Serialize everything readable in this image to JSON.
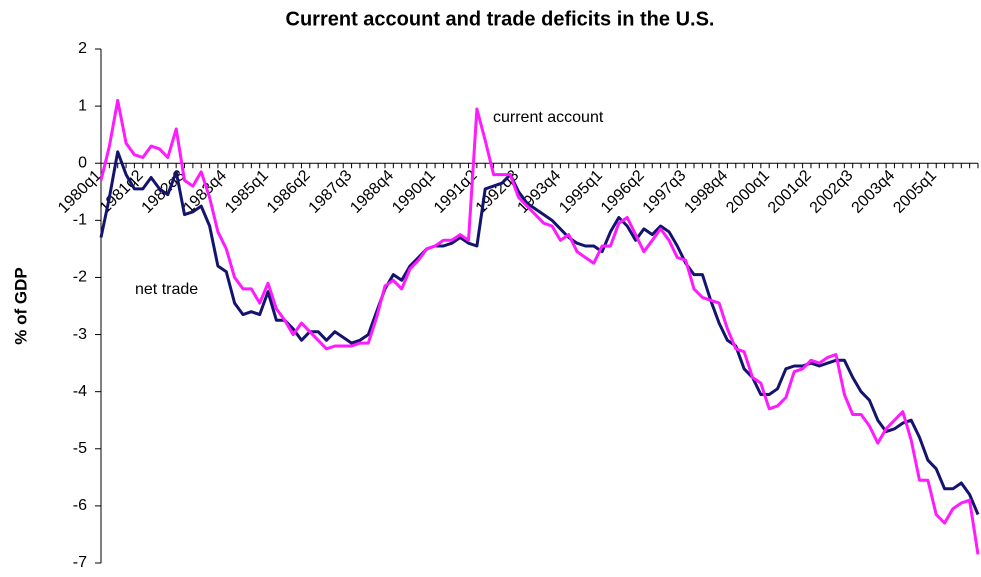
{
  "chart_data": {
    "type": "line",
    "title": "Current account and trade deficits in the U.S.",
    "y_label": "% of GDP",
    "categories": [
      "1980q1",
      null,
      null,
      null,
      null,
      "1981q2",
      null,
      null,
      null,
      null,
      "1982q3",
      null,
      null,
      null,
      null,
      "1983q4",
      null,
      null,
      null,
      null,
      "1985q1",
      null,
      null,
      null,
      null,
      "1986q2",
      null,
      null,
      null,
      null,
      "1987q3",
      null,
      null,
      null,
      null,
      "1988q4",
      null,
      null,
      null,
      null,
      "1990q1",
      null,
      null,
      null,
      null,
      "1991q2",
      null,
      null,
      null,
      null,
      "1992q3",
      null,
      null,
      null,
      null,
      "1993q4",
      null,
      null,
      null,
      null,
      "1995q1",
      null,
      null,
      null,
      null,
      "1996q2",
      null,
      null,
      null,
      null,
      "1997q3",
      null,
      null,
      null,
      null,
      "1998q4",
      null,
      null,
      null,
      null,
      "2000q1",
      null,
      null,
      null,
      null,
      "2001q2",
      null,
      null,
      null,
      null,
      "2002q3",
      null,
      null,
      null,
      null,
      "2003q4",
      null,
      null,
      null,
      null,
      "2005q1",
      null,
      null,
      null,
      null,
      null
    ],
    "series": [
      {
        "name": "net trade",
        "color": "#14146e",
        "values": [
          -1.3,
          -0.6,
          0.2,
          -0.2,
          -0.45,
          -0.45,
          -0.25,
          -0.45,
          -0.55,
          -0.15,
          -0.9,
          -0.85,
          -0.75,
          -1.1,
          -1.8,
          -1.9,
          -2.45,
          -2.65,
          -2.6,
          -2.65,
          -2.25,
          -2.75,
          -2.75,
          -2.9,
          -3.1,
          -2.95,
          -2.95,
          -3.1,
          -2.95,
          -3.05,
          -3.15,
          -3.1,
          -3.0,
          -2.6,
          -2.2,
          -1.95,
          -2.05,
          -1.8,
          -1.65,
          -1.5,
          -1.45,
          -1.45,
          -1.4,
          -1.3,
          -1.4,
          -1.45,
          -0.45,
          -0.4,
          -0.35,
          -0.2,
          -0.5,
          -0.7,
          -0.8,
          -0.9,
          -1.0,
          -1.15,
          -1.3,
          -1.4,
          -1.45,
          -1.45,
          -1.55,
          -1.2,
          -0.95,
          -1.1,
          -1.35,
          -1.15,
          -1.25,
          -1.1,
          -1.2,
          -1.45,
          -1.75,
          -1.95,
          -1.95,
          -2.4,
          -2.8,
          -3.1,
          -3.2,
          -3.6,
          -3.75,
          -4.05,
          -4.05,
          -3.95,
          -3.6,
          -3.55,
          -3.55,
          -3.5,
          -3.55,
          -3.5,
          -3.45,
          -3.45,
          -3.75,
          -4.0,
          -4.15,
          -4.5,
          -4.7,
          -4.65,
          -4.55,
          -4.5,
          -4.8,
          -5.2,
          -5.35,
          -5.7,
          -5.7,
          -5.6,
          -5.8,
          -6.15
        ]
      },
      {
        "name": "current account",
        "color": "#ff1aff",
        "values": [
          -0.3,
          0.3,
          1.1,
          0.35,
          0.15,
          0.1,
          0.3,
          0.25,
          0.1,
          0.6,
          -0.3,
          -0.4,
          -0.15,
          -0.6,
          -1.2,
          -1.5,
          -2.0,
          -2.2,
          -2.2,
          -2.45,
          -2.1,
          -2.55,
          -2.75,
          -3.0,
          -2.8,
          -2.95,
          -3.1,
          -3.25,
          -3.2,
          -3.2,
          -3.2,
          -3.15,
          -3.15,
          -2.7,
          -2.15,
          -2.05,
          -2.2,
          -1.85,
          -1.7,
          -1.5,
          -1.45,
          -1.35,
          -1.35,
          -1.25,
          -1.35,
          0.95,
          0.4,
          -0.2,
          -0.2,
          -0.2,
          -0.6,
          -0.75,
          -0.9,
          -1.05,
          -1.1,
          -1.35,
          -1.25,
          -1.55,
          -1.65,
          -1.75,
          -1.45,
          -1.45,
          -1.05,
          -0.95,
          -1.25,
          -1.55,
          -1.35,
          -1.15,
          -1.35,
          -1.65,
          -1.7,
          -2.2,
          -2.35,
          -2.4,
          -2.45,
          -2.9,
          -3.25,
          -3.3,
          -3.75,
          -3.85,
          -4.3,
          -4.25,
          -4.1,
          -3.65,
          -3.6,
          -3.45,
          -3.5,
          -3.4,
          -3.35,
          -4.05,
          -4.4,
          -4.4,
          -4.6,
          -4.9,
          -4.65,
          -4.5,
          -4.35,
          -4.85,
          -5.55,
          -5.55,
          -6.15,
          -6.3,
          -6.05,
          -5.95,
          -5.9,
          -6.85
        ]
      }
    ],
    "ylim": [
      -7,
      2
    ],
    "yticks": [
      -7,
      -6,
      -5,
      -4,
      -3,
      -2,
      -1,
      0,
      1,
      2
    ],
    "grid": false
  }
}
